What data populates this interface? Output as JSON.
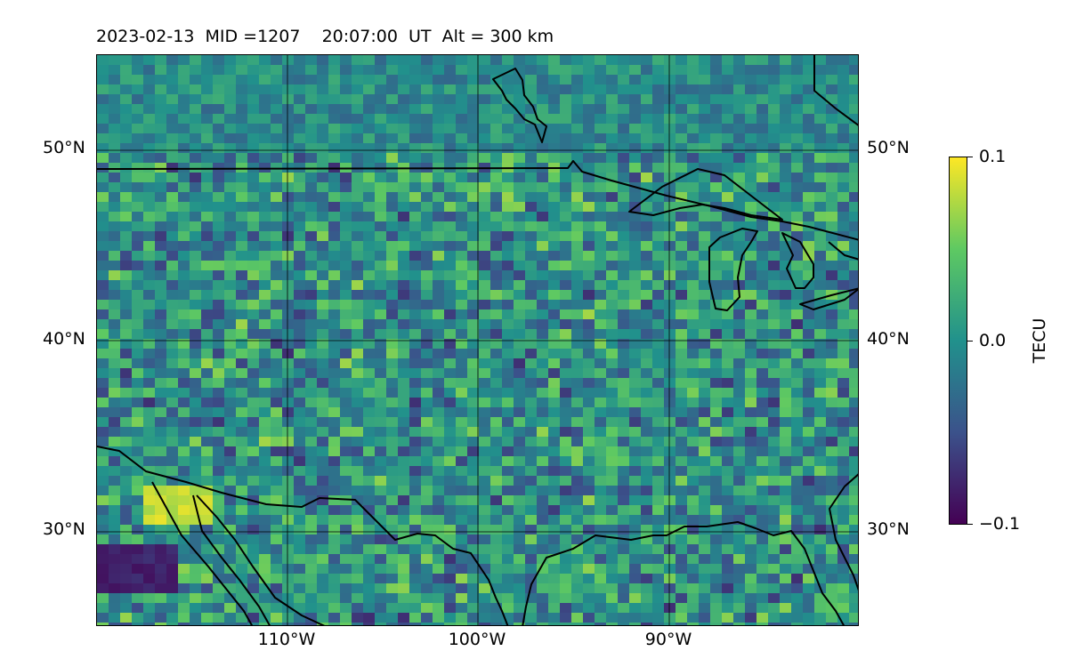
{
  "title": "2023-02-13  MID =1207    20:07:00  UT  Alt = 300 km",
  "map": {
    "lon_range": [
      -120,
      -80
    ],
    "lat_range": [
      25,
      55
    ],
    "lat_ticks": [
      "50°N",
      "40°N",
      "30°N"
    ],
    "lon_ticks": [
      "110°W",
      "100°W",
      "90°W"
    ],
    "gridlines": true,
    "field": "TEC perturbation map (viridis colormap)"
  },
  "colorbar": {
    "label": "TECU",
    "ticks": [
      "0.1",
      "0.0",
      "−0.1"
    ],
    "min": -0.1,
    "max": 0.1,
    "colormap": "viridis"
  }
}
